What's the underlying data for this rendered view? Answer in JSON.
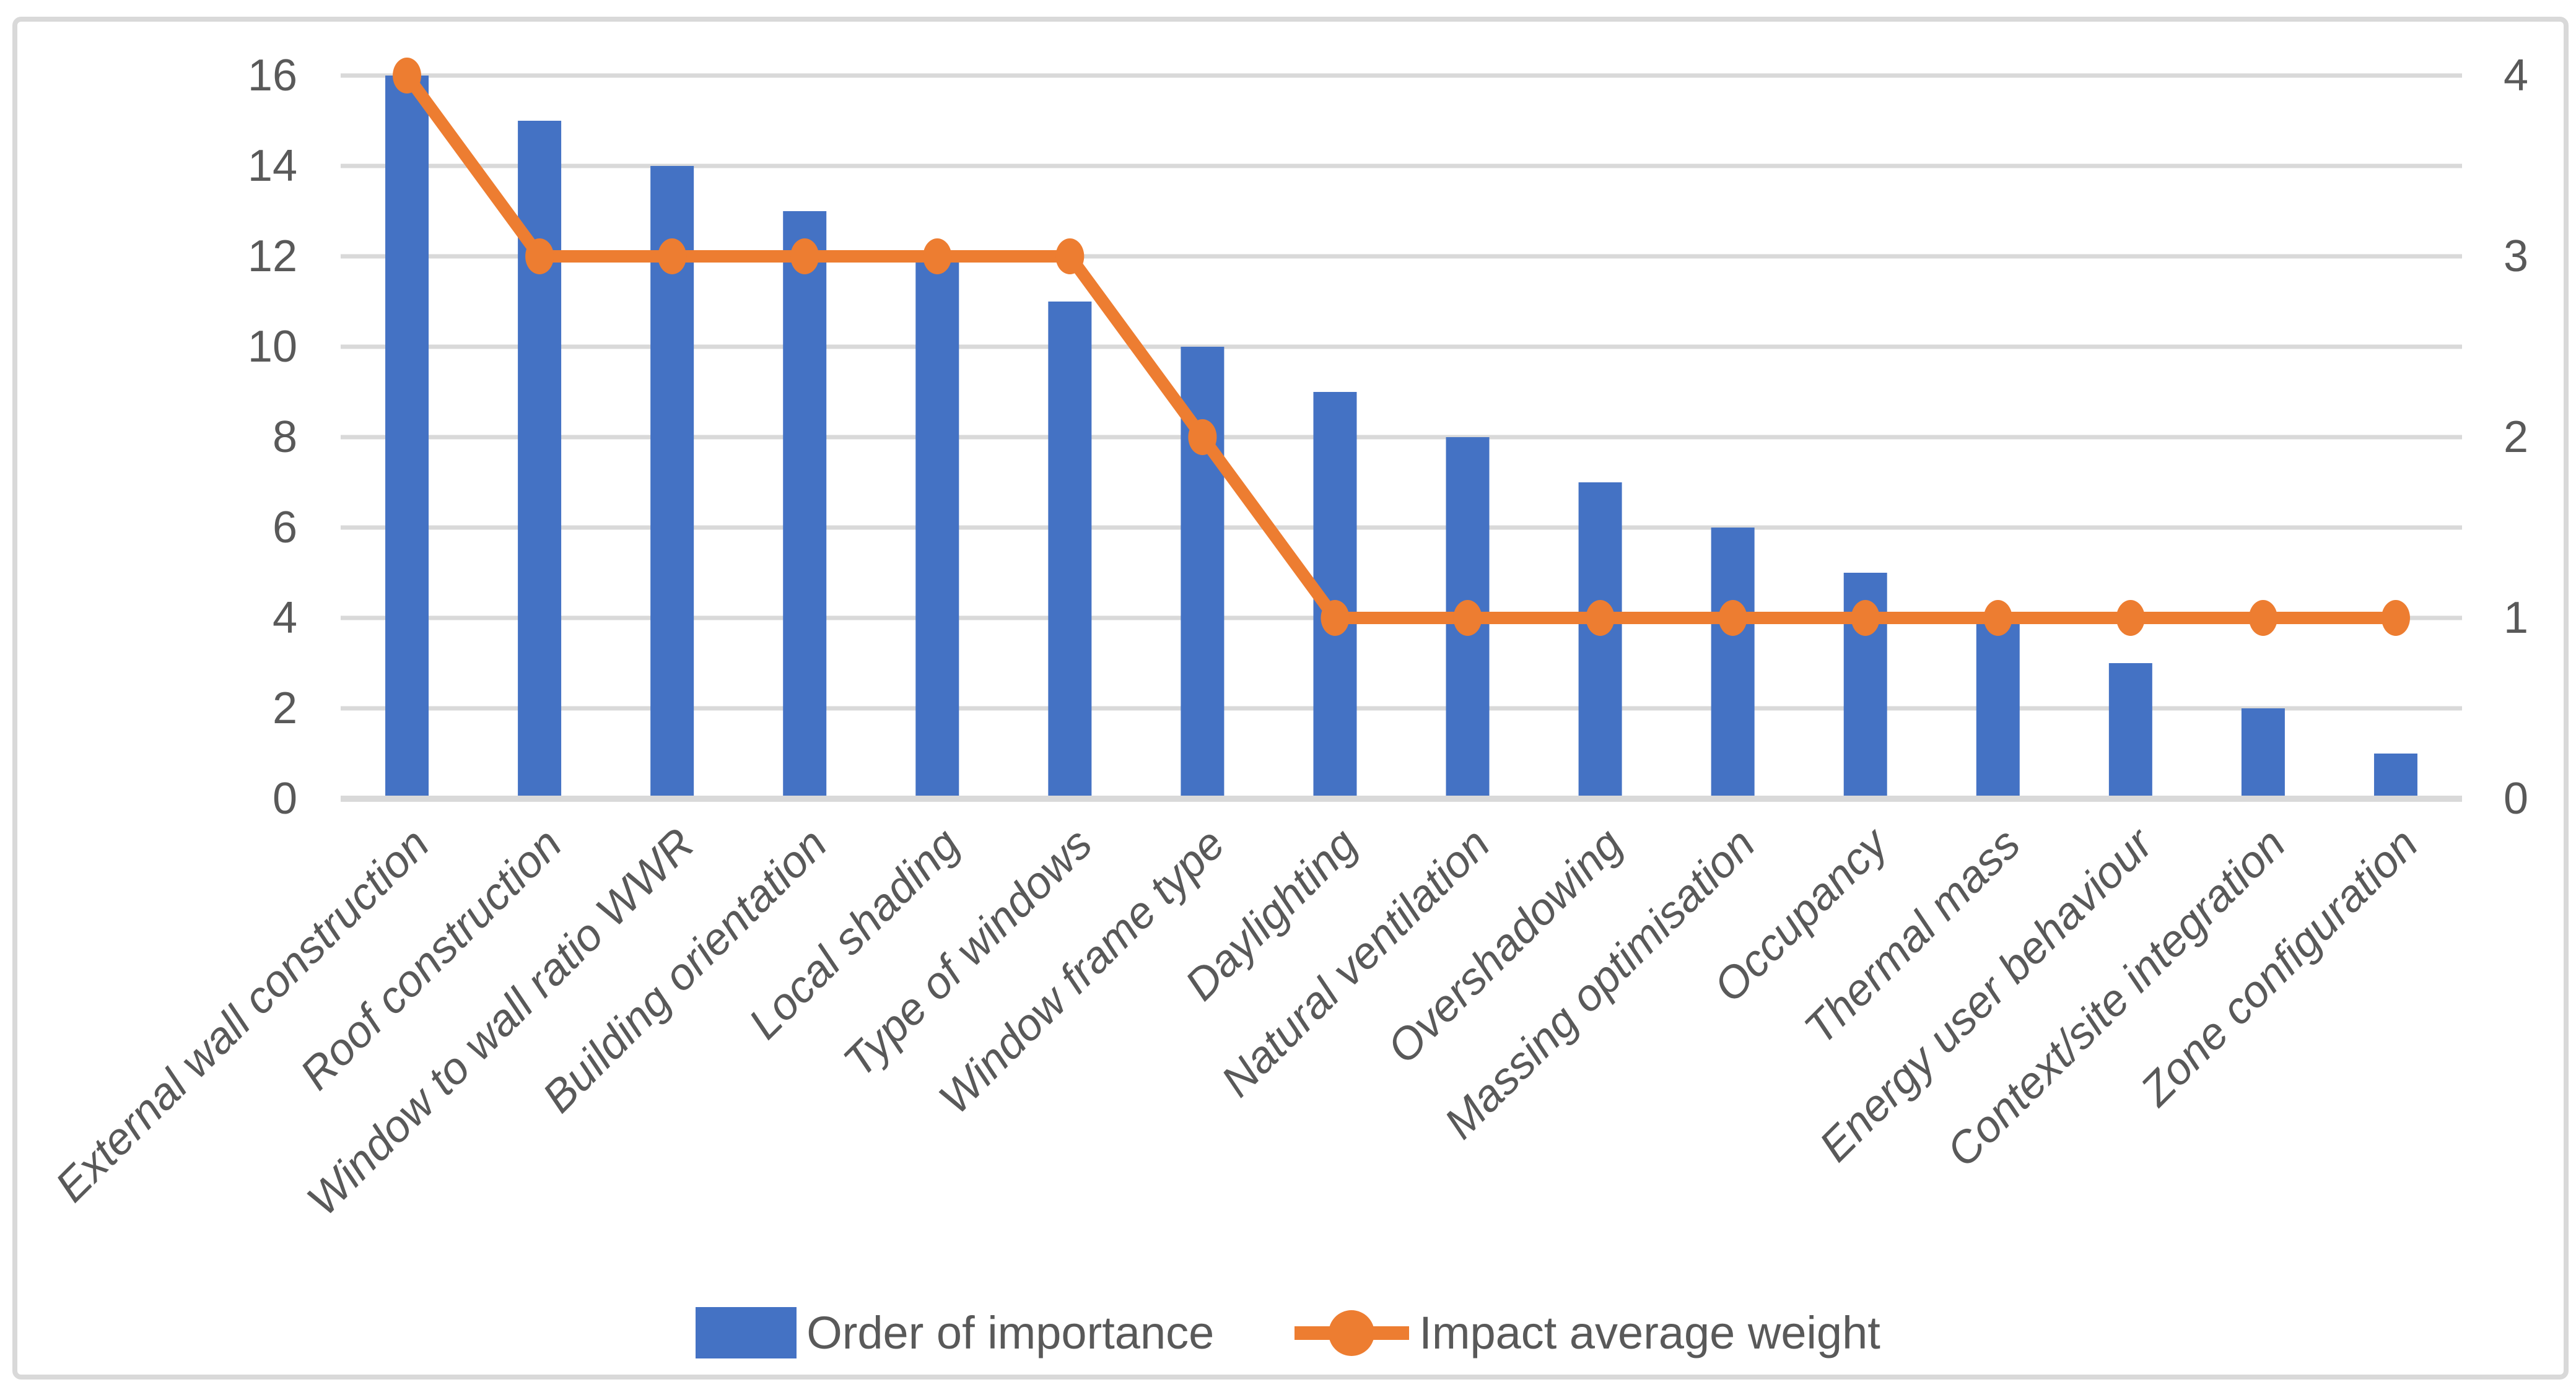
{
  "chart_data": {
    "type": "bar",
    "subtype": "column-and-line-combo",
    "title": "",
    "xlabel": "",
    "ylabel": "",
    "categories": [
      "External wall construction",
      "Roof construction",
      "Window to wall ratio WWR",
      "Building orientation",
      "Local shading",
      "Type of windows",
      "Window frame type",
      "Daylighting",
      "Natural ventilation",
      "Overshadowing",
      "Massing optimisation",
      "Occupancy",
      "Thermal mass",
      "Energy user behaviour",
      "Context/site integration",
      "Zone configuration"
    ],
    "series": [
      {
        "name": "Order of importance",
        "style": "column",
        "axis": "left",
        "color": "#4472C4",
        "values": [
          16,
          15,
          14,
          13,
          12,
          11,
          10,
          9,
          8,
          7,
          6,
          5,
          4,
          3,
          2,
          1
        ]
      },
      {
        "name": "Impact average weight",
        "style": "line-with-markers",
        "axis": "right",
        "color": "#ED7D31",
        "values": [
          4,
          3,
          3,
          3,
          3,
          3,
          2,
          1,
          1,
          1,
          1,
          1,
          1,
          1,
          1,
          1
        ]
      }
    ],
    "left_axis": {
      "min": 0,
      "max": 16,
      "step": 2,
      "ticks": [
        0,
        2,
        4,
        6,
        8,
        10,
        12,
        14,
        16
      ]
    },
    "right_axis": {
      "min": 0,
      "max": 4,
      "step": 1,
      "ticks": [
        0,
        1,
        2,
        3,
        4
      ]
    },
    "grid": true,
    "legend_position": "bottom",
    "category_label_rotation_deg": 45,
    "palette": {
      "bar": "#4472C4",
      "line": "#ED7D31",
      "grid": "#D9D9D9",
      "axis_line": "#D9D9D9",
      "text": "#595959",
      "frame": "#D9D9D9",
      "background": "#FFFFFF"
    }
  }
}
